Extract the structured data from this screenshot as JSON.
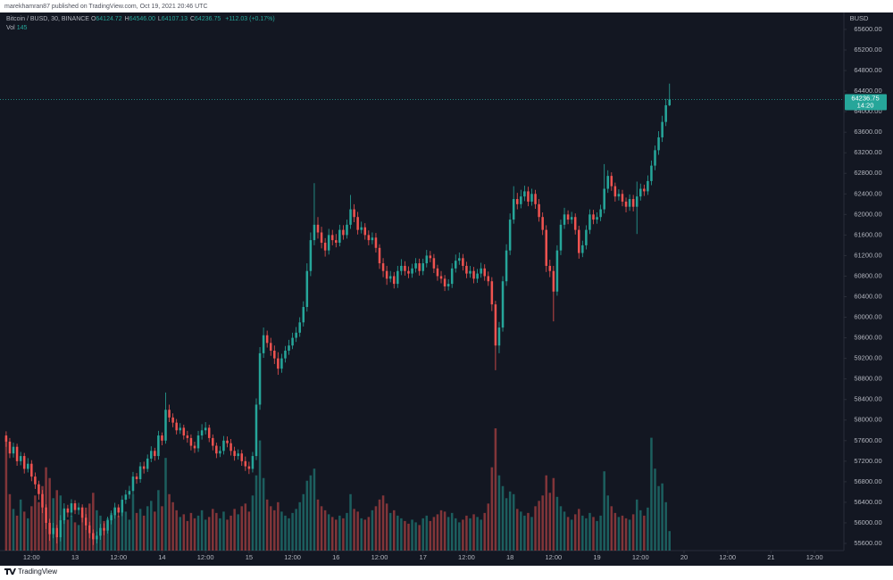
{
  "header": {
    "published": "marekhamran87 published on TradingView.com, Oct 19, 2021 20:46 UTC"
  },
  "footer": {
    "brand": "TradingView"
  },
  "chart_data": {
    "type": "candlestick",
    "legend": {
      "symbol": "Bitcoin / BUSD, 30, BINANCE",
      "fields": [
        {
          "label": "O",
          "value": "64124.72"
        },
        {
          "label": "H",
          "value": "64546.00"
        },
        {
          "label": "L",
          "value": "64107.13"
        },
        {
          "label": "C",
          "value": "64236.75"
        }
      ],
      "change": "+112.03 (+0.17%)",
      "volume_label": "Vol"
    },
    "axis_unit": "BUSD",
    "countdown": "14:20",
    "up_color": "#26a69a",
    "down_color": "#ef5350",
    "grid": false,
    "open": [
      57700,
      57580,
      57350,
      57480,
      57200,
      57300,
      57050,
      57150,
      56900,
      56750,
      56560,
      56300,
      56000,
      55780,
      55900,
      55720,
      56050,
      56280,
      56200,
      56380,
      56250,
      56300,
      56100,
      55950,
      55800,
      55680,
      55750,
      55900,
      55850,
      56050,
      56150,
      56300,
      56200,
      56450,
      56550,
      56620,
      56900,
      56850,
      57100,
      57050,
      57250,
      57400,
      57300,
      57700,
      57600,
      58200,
      58050,
      57950,
      57800,
      57850,
      57700,
      57650,
      57500,
      57450,
      57700,
      57800,
      57850,
      57650,
      57500,
      57350,
      57400,
      57600,
      57550,
      57400,
      57300,
      57350,
      57200,
      57100,
      57050,
      57300,
      58300,
      59300,
      59650,
      59500,
      59350,
      59200,
      59000,
      59200,
      59350,
      59450,
      59600,
      59700,
      59900,
      60200,
      60900,
      61500,
      61800,
      61650,
      61450,
      61300,
      61600,
      61500,
      61450,
      61700,
      61600,
      61800,
      62100,
      61950,
      61700,
      61750,
      61600,
      61500,
      61550,
      61350,
      61050,
      60900,
      60750,
      60800,
      60650,
      60900,
      61000,
      60900,
      60850,
      60950,
      61050,
      60900,
      61050,
      61200,
      61150,
      60950,
      60800,
      60750,
      60600,
      60650,
      60950,
      61100,
      61150,
      61000,
      60850,
      60900,
      60750,
      60850,
      60950,
      60800,
      60700,
      60250,
      59450,
      59800,
      60700,
      61300,
      61900,
      62300,
      62200,
      62350,
      62450,
      62250,
      62400,
      62200,
      61950,
      61700,
      61000,
      60900,
      60500,
      61300,
      61800,
      62000,
      61900,
      61950,
      61700,
      61250,
      61400,
      61700,
      62000,
      61900,
      61950,
      62100,
      62500,
      62750,
      62550,
      62350,
      62400,
      62250,
      62150,
      62300,
      62150,
      62350,
      62500,
      62450,
      62650,
      62950,
      63250,
      63500,
      63800,
      64124.72
    ],
    "high": [
      57780,
      57650,
      57560,
      57540,
      57380,
      57360,
      57260,
      57220,
      56980,
      56820,
      56640,
      56360,
      56080,
      56000,
      55960,
      56150,
      56380,
      56350,
      56460,
      56440,
      56390,
      56360,
      56170,
      56020,
      55870,
      55830,
      55980,
      55990,
      56120,
      56240,
      56390,
      56360,
      56530,
      56640,
      56720,
      56990,
      56970,
      57180,
      57190,
      57330,
      57490,
      57460,
      57790,
      57760,
      58535,
      58300,
      58130,
      58020,
      57940,
      57910,
      57790,
      57720,
      57580,
      57790,
      57920,
      57960,
      57910,
      57720,
      57560,
      57490,
      57690,
      57680,
      57630,
      57480,
      57430,
      57420,
      57290,
      57190,
      57380,
      58420,
      59420,
      59800,
      59740,
      59600,
      59450,
      59320,
      59290,
      59440,
      59560,
      59700,
      59810,
      60000,
      60310,
      61050,
      61650,
      62610,
      61950,
      61760,
      61540,
      61720,
      61700,
      61620,
      61800,
      61790,
      61900,
      62380,
      62200,
      62050,
      61860,
      61830,
      61690,
      61650,
      61640,
      61420,
      61150,
      61000,
      60900,
      60880,
      61000,
      61130,
      61090,
      60990,
      61040,
      61150,
      61140,
      61140,
      61310,
      61290,
      61230,
      61020,
      60900,
      60820,
      60740,
      61050,
      61220,
      61260,
      61230,
      61080,
      61000,
      60980,
      60940,
      61060,
      61030,
      60890,
      60780,
      60320,
      59910,
      60800,
      61420,
      62020,
      62550,
      62420,
      62480,
      62560,
      62540,
      62500,
      62480,
      62300,
      62040,
      61790,
      61120,
      61000,
      61400,
      61900,
      62130,
      62080,
      62050,
      62020,
      61780,
      61490,
      61790,
      62100,
      62090,
      62040,
      62190,
      62980,
      62860,
      62820,
      62620,
      62490,
      62480,
      62330,
      62390,
      62380,
      62640,
      62600,
      62580,
      62760,
      63050,
      63340,
      63620,
      63920,
      64250,
      64546
    ],
    "low": [
      57480,
      57260,
      57270,
      57110,
      57120,
      56960,
      56980,
      56810,
      56660,
      56450,
      56190,
      55880,
      55650,
      55700,
      55600,
      55640,
      55980,
      56110,
      56120,
      56170,
      56160,
      56010,
      55860,
      55700,
      55570,
      55600,
      55670,
      55760,
      55790,
      55970,
      56080,
      56110,
      56130,
      56370,
      56470,
      56560,
      56760,
      56780,
      56960,
      56990,
      57180,
      57210,
      57230,
      57510,
      57540,
      57960,
      57860,
      57720,
      57730,
      57620,
      57560,
      57410,
      57360,
      57380,
      57620,
      57720,
      57570,
      57410,
      57260,
      57280,
      57330,
      57470,
      57310,
      57210,
      57230,
      57110,
      57010,
      56950,
      56980,
      57220,
      58200,
      59210,
      59410,
      59250,
      59090,
      58880,
      58920,
      59120,
      59270,
      59380,
      59520,
      59620,
      59820,
      60110,
      60800,
      61400,
      61530,
      61340,
      61180,
      61220,
      61400,
      61360,
      61380,
      61510,
      61530,
      61720,
      61850,
      61610,
      61630,
      61510,
      61400,
      61420,
      61260,
      60940,
      60780,
      60630,
      60680,
      60560,
      60570,
      60820,
      60810,
      60760,
      60770,
      60870,
      60810,
      60820,
      60970,
      61070,
      60860,
      60710,
      60660,
      60510,
      60520,
      60570,
      60870,
      61020,
      60910,
      60760,
      60770,
      60660,
      60670,
      60770,
      60710,
      60610,
      60120,
      58970,
      59300,
      59720,
      60610,
      61210,
      61820,
      62100,
      62120,
      62260,
      62160,
      62170,
      62110,
      61860,
      61600,
      60880,
      60780,
      59920,
      60420,
      61210,
      61720,
      61810,
      61820,
      61610,
      61140,
      61170,
      61320,
      61620,
      61810,
      61820,
      61870,
      62020,
      62420,
      62460,
      62250,
      62270,
      62160,
      62040,
      62070,
      62060,
      61620,
      62270,
      62360,
      62380,
      62570,
      62860,
      63160,
      63410,
      63720,
      64107.13
    ],
    "close": [
      57580,
      57350,
      57480,
      57200,
      57300,
      57050,
      57150,
      56900,
      56750,
      56560,
      56300,
      56000,
      55780,
      55900,
      55720,
      56050,
      56280,
      56200,
      56380,
      56250,
      56300,
      56100,
      55950,
      55800,
      55680,
      55750,
      55900,
      55850,
      56050,
      56150,
      56300,
      56200,
      56450,
      56550,
      56620,
      56900,
      56850,
      57100,
      57050,
      57250,
      57400,
      57300,
      57700,
      57600,
      58200,
      58050,
      57950,
      57800,
      57850,
      57700,
      57650,
      57500,
      57450,
      57700,
      57800,
      57850,
      57650,
      57500,
      57350,
      57400,
      57600,
      57550,
      57400,
      57300,
      57350,
      57200,
      57100,
      57050,
      57300,
      58300,
      59300,
      59650,
      59500,
      59350,
      59200,
      59000,
      59200,
      59350,
      59450,
      59600,
      59700,
      59900,
      60200,
      60900,
      61500,
      61800,
      61650,
      61450,
      61300,
      61600,
      61500,
      61450,
      61700,
      61600,
      61800,
      62100,
      61950,
      61700,
      61750,
      61600,
      61500,
      61550,
      61350,
      61050,
      60900,
      60750,
      60800,
      60650,
      60900,
      61000,
      60900,
      60850,
      60950,
      61050,
      60900,
      61050,
      61200,
      61150,
      60950,
      60800,
      60750,
      60600,
      60650,
      60950,
      61100,
      61150,
      61000,
      60850,
      60900,
      60750,
      60850,
      60950,
      60800,
      60700,
      60250,
      59450,
      59800,
      60700,
      61300,
      61900,
      62300,
      62200,
      62350,
      62450,
      62250,
      62400,
      62200,
      61950,
      61700,
      61000,
      60900,
      60500,
      61300,
      61800,
      62000,
      61900,
      61950,
      61700,
      61250,
      61400,
      61700,
      62000,
      61900,
      61950,
      62100,
      62500,
      62750,
      62550,
      62350,
      62400,
      62250,
      62150,
      62300,
      62150,
      62350,
      62500,
      62450,
      62650,
      62950,
      63250,
      63500,
      63800,
      64124.72,
      64236.75
    ],
    "volume": [
      840,
      420,
      310,
      260,
      380,
      290,
      240,
      330,
      410,
      360,
      480,
      620,
      540,
      390,
      450,
      410,
      300,
      230,
      260,
      210,
      190,
      280,
      320,
      350,
      430,
      300,
      260,
      220,
      240,
      280,
      310,
      260,
      340,
      290,
      230,
      420,
      280,
      310,
      260,
      330,
      370,
      290,
      450,
      330,
      690,
      420,
      360,
      300,
      250,
      270,
      220,
      280,
      240,
      260,
      300,
      230,
      250,
      310,
      280,
      240,
      290,
      230,
      260,
      310,
      270,
      330,
      350,
      290,
      410,
      560,
      820,
      540,
      380,
      330,
      300,
      360,
      290,
      260,
      240,
      280,
      310,
      360,
      420,
      520,
      560,
      610,
      380,
      330,
      300,
      270,
      250,
      230,
      260,
      240,
      280,
      420,
      310,
      290,
      240,
      230,
      250,
      300,
      330,
      380,
      410,
      350,
      280,
      300,
      260,
      240,
      220,
      200,
      230,
      210,
      190,
      240,
      260,
      220,
      250,
      270,
      300,
      290,
      250,
      280,
      240,
      210,
      230,
      260,
      240,
      270,
      250,
      230,
      280,
      350,
      620,
      910,
      560,
      480,
      390,
      440,
      420,
      310,
      290,
      260,
      280,
      250,
      330,
      370,
      410,
      560,
      430,
      540,
      400,
      330,
      290,
      250,
      230,
      270,
      310,
      260,
      240,
      280,
      250,
      220,
      260,
      590,
      410,
      330,
      280,
      250,
      260,
      240,
      230,
      270,
      380,
      300,
      260,
      320,
      840,
      610,
      480,
      500,
      360,
      145
    ],
    "volume_ylim": [
      0,
      4000
    ],
    "xlim": [
      -1.7,
      231.1
    ],
    "xticks": [
      {
        "value": 7,
        "label": "12:00"
      },
      {
        "value": 19,
        "label": "13"
      },
      {
        "value": 31,
        "label": "12:00"
      },
      {
        "value": 43,
        "label": "14"
      },
      {
        "value": 55,
        "label": "12:00"
      },
      {
        "value": 67,
        "label": "15"
      },
      {
        "value": 79,
        "label": "12:00"
      },
      {
        "value": 91,
        "label": "16"
      },
      {
        "value": 103,
        "label": "12:00"
      },
      {
        "value": 115,
        "label": "17"
      },
      {
        "value": 127,
        "label": "12:00"
      },
      {
        "value": 139,
        "label": "18"
      },
      {
        "value": 151,
        "label": "12:00"
      },
      {
        "value": 163,
        "label": "19"
      },
      {
        "value": 175,
        "label": "12:00"
      },
      {
        "value": 187,
        "label": "20"
      },
      {
        "value": 199,
        "label": "12:00"
      },
      {
        "value": 211,
        "label": "21"
      },
      {
        "value": 223,
        "label": "12:00"
      }
    ],
    "ylim": [
      55461,
      65912
    ],
    "yticks": [
      {
        "value": 55600,
        "label": "55600.00"
      },
      {
        "value": 56000,
        "label": "56000.00"
      },
      {
        "value": 56400,
        "label": "56400.00"
      },
      {
        "value": 56800,
        "label": "56800.00"
      },
      {
        "value": 57200,
        "label": "57200.00"
      },
      {
        "value": 57600,
        "label": "57600.00"
      },
      {
        "value": 58000,
        "label": "58000.00"
      },
      {
        "value": 58400,
        "label": "58400.00"
      },
      {
        "value": 58800,
        "label": "58800.00"
      },
      {
        "value": 59200,
        "label": "59200.00"
      },
      {
        "value": 59600,
        "label": "59600.00"
      },
      {
        "value": 60000,
        "label": "60000.00"
      },
      {
        "value": 60400,
        "label": "60400.00"
      },
      {
        "value": 60800,
        "label": "60800.00"
      },
      {
        "value": 61200,
        "label": "61200.00"
      },
      {
        "value": 61600,
        "label": "61600.00"
      },
      {
        "value": 62000,
        "label": "62000.00"
      },
      {
        "value": 62400,
        "label": "62400.00"
      },
      {
        "value": 62800,
        "label": "62800.00"
      },
      {
        "value": 63200,
        "label": "63200.00"
      },
      {
        "value": 63600,
        "label": "63600.00"
      },
      {
        "value": 64000,
        "label": "64000.00"
      },
      {
        "value": 64400,
        "label": "64400.00"
      },
      {
        "value": 64800,
        "label": "64800.00"
      },
      {
        "value": 65200,
        "label": "65200.00"
      },
      {
        "value": 65600,
        "label": "65600.00"
      }
    ]
  }
}
